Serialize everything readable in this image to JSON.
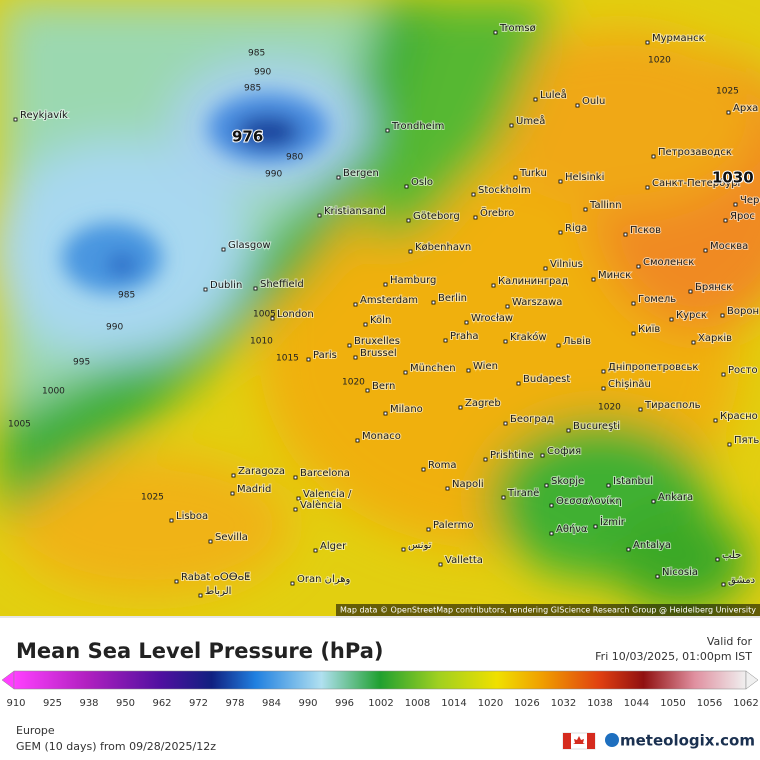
{
  "map": {
    "cities": [
      "Reykjavík",
      "Tromsø",
      "Мурманск",
      "Luleå",
      "Oulu",
      "Umeå",
      "Trondheim",
      "Арха",
      "Петрозаводск",
      "Bergen",
      "Oslo",
      "Turku",
      "Helsinki",
      "Санкт-Петербург",
      "Stockholm",
      "Örebro",
      "Kristiansand",
      "Göteborg",
      "Tallinn",
      "Ярос",
      "Glasgow",
      "Riga",
      "Псков",
      "København",
      "Москва",
      "Vilnius",
      "Смоленск",
      "Hamburg",
      "Калининград",
      "Минск",
      "Dublin",
      "Sheffield",
      "Брянск",
      "Amsterdam",
      "Berlin",
      "Warszawa",
      "Гомель",
      "London",
      "Köln",
      "Wrocław",
      "Курск",
      "Ворон",
      "Bruxelles",
      "Brussel",
      "Praha",
      "Kraków",
      "Львів",
      "Київ",
      "Харків",
      "Paris",
      "Днiпропетровськ",
      "München",
      "Wien",
      "Росто",
      "Chișinău",
      "Bern",
      "Budapest",
      "Тирасполь",
      "Milano",
      "Zagreb",
      "Београд",
      "Красно",
      "Monaco",
      "Bucureşti",
      "Пять",
      "Prishtine",
      "София",
      "Roma",
      "Zaragoza",
      "Barcelona",
      "Napoli",
      "Istanbul",
      "Skopje",
      "Madrid",
      "Valencia /",
      "València",
      "Tiranë",
      "Θεσσαλονίκη",
      "Ankara",
      "Lisboa",
      "Αθήνα",
      "İzmir",
      "Sevilla",
      "Palermo",
      "تونس",
      "Antalya",
      "حلب",
      "Alger",
      "Valletta",
      "Nicosia",
      "Rabat ⴰⵔⴱⴰⵟ",
      "الرباط",
      "Oran وهران",
      "دمشق",
      "Черe"
    ],
    "isobar_labels": [
      985,
      990,
      985,
      976,
      980,
      990,
      985,
      990,
      995,
      1000,
      1005,
      1005,
      1010,
      1015,
      1020,
      1020,
      1025,
      1020,
      1025,
      1030
    ],
    "attribution": "Map data © OpenStreetMap contributors, rendering GIScience Research Group @ Heidelberg University"
  },
  "legend": {
    "title": "Mean Sea Level Pressure (hPa)",
    "valid_label": "Valid for",
    "valid_time": "Fri 10/03/2025, 01:00pm IST",
    "ticks": [
      910,
      925,
      938,
      950,
      962,
      972,
      978,
      984,
      990,
      996,
      1002,
      1008,
      1014,
      1020,
      1026,
      1032,
      1038,
      1044,
      1050,
      1056,
      1062
    ],
    "region": "Europe",
    "model_run": "GEM (10 days) from 09/28/2025/12z",
    "brand": "meteologix.com"
  }
}
